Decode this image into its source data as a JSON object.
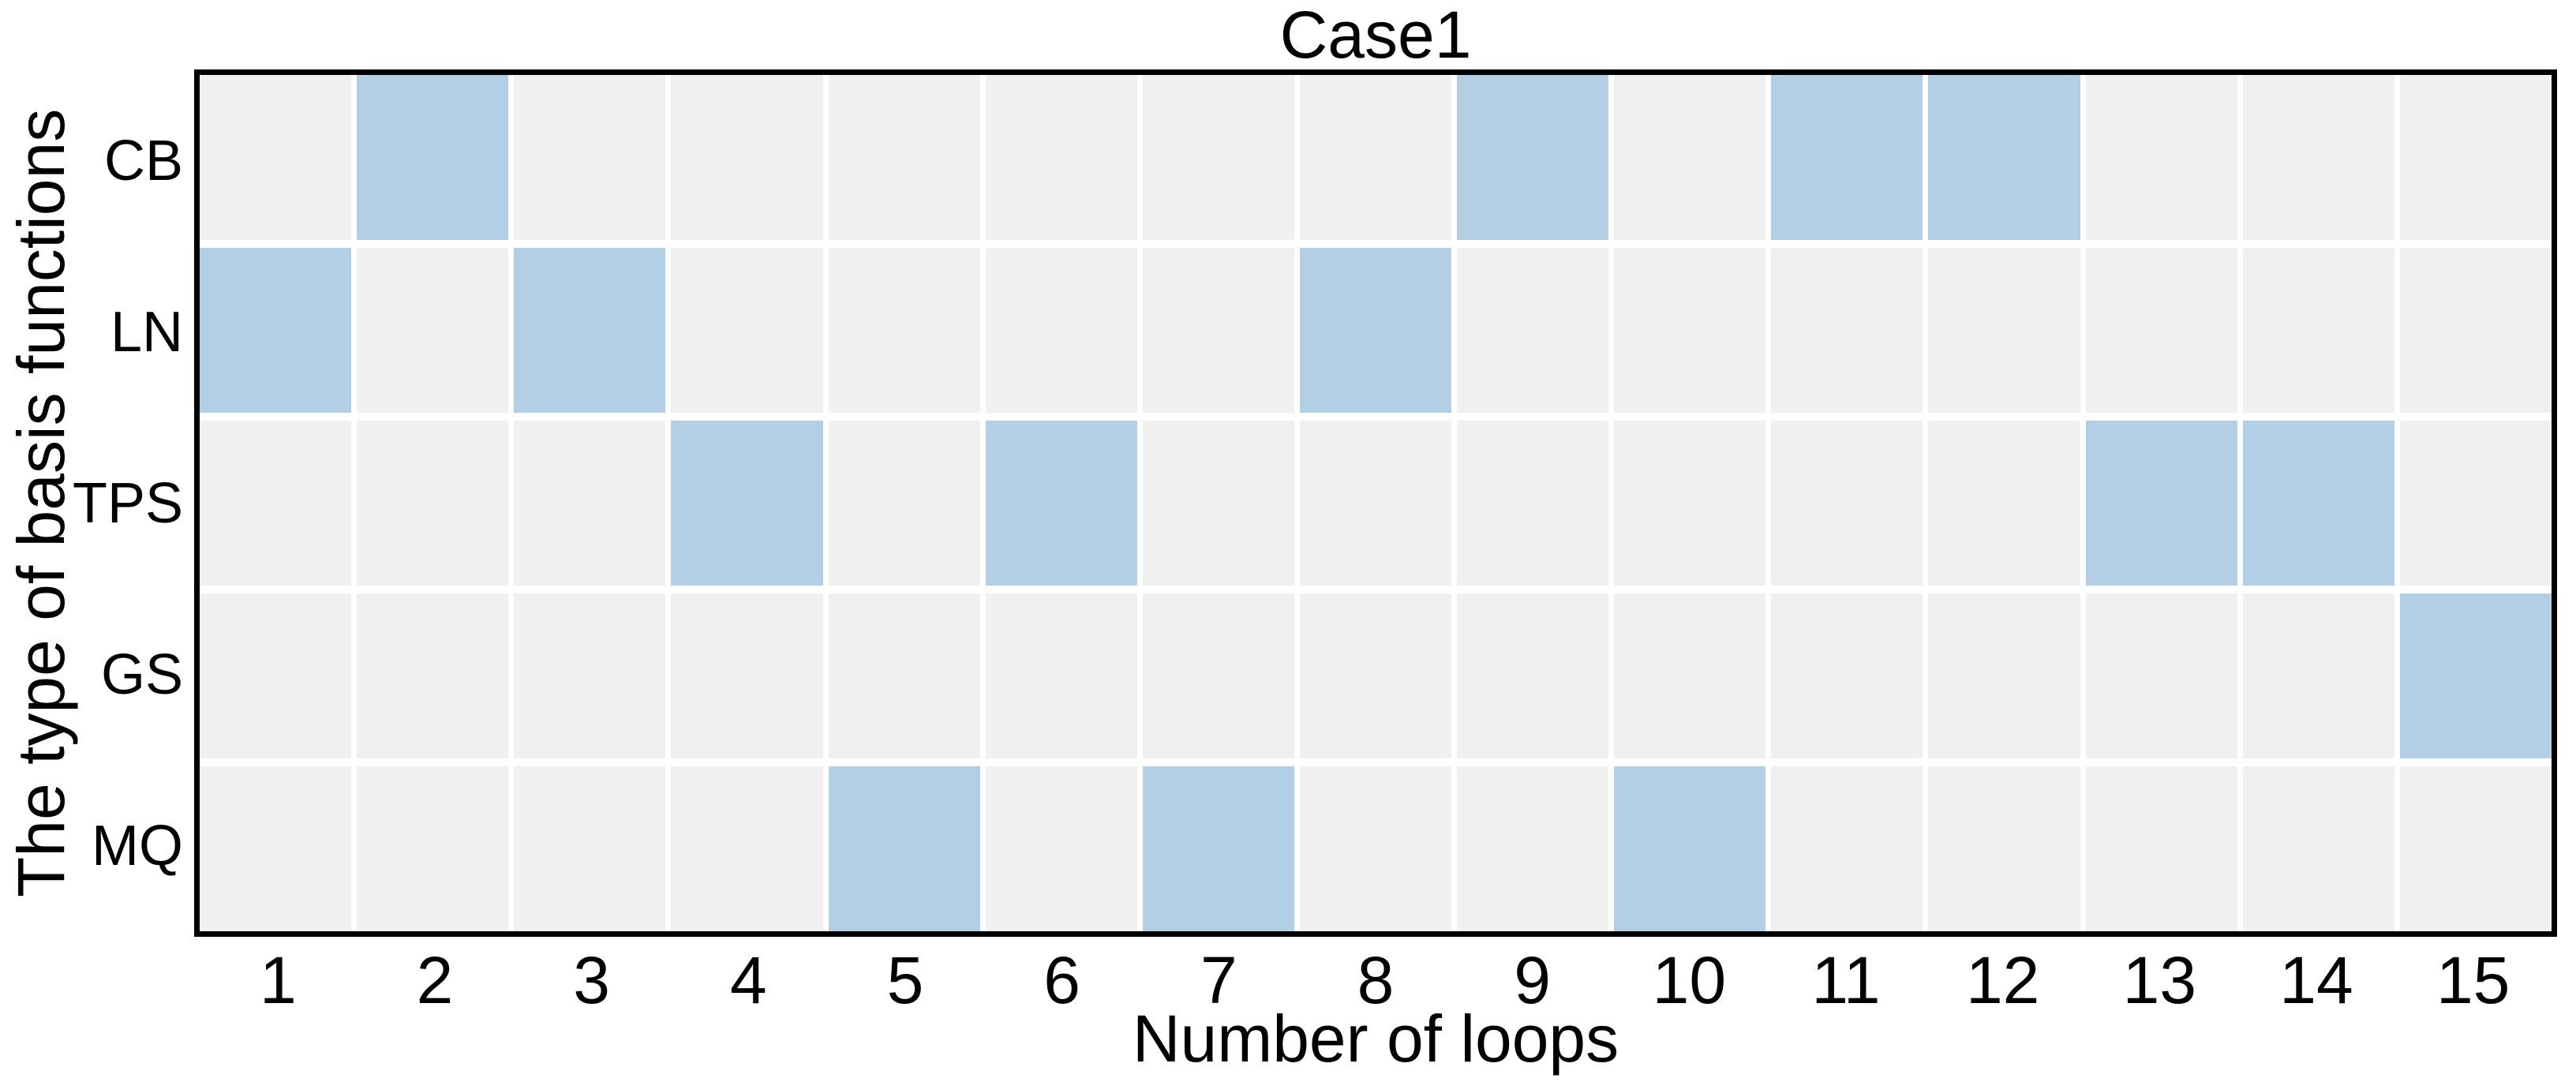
{
  "chart_data": {
    "type": "heatmap",
    "title": "Case1",
    "xlabel": "Number of loops",
    "ylabel": "The type of basis functions",
    "x_ticks": [
      "1",
      "2",
      "3",
      "4",
      "5",
      "6",
      "7",
      "8",
      "9",
      "10",
      "11",
      "12",
      "13",
      "14",
      "15"
    ],
    "y_ticks": [
      "CB",
      "LN",
      "TPS",
      "GS",
      "MQ"
    ],
    "x_range": [
      1,
      15
    ],
    "grid": true,
    "legend": null,
    "matrix": [
      [
        0,
        1,
        0,
        0,
        0,
        0,
        0,
        0,
        1,
        0,
        1,
        1,
        0,
        0,
        0
      ],
      [
        1,
        0,
        1,
        0,
        0,
        0,
        0,
        1,
        0,
        0,
        0,
        0,
        0,
        0,
        0
      ],
      [
        0,
        0,
        0,
        1,
        0,
        1,
        0,
        0,
        0,
        0,
        0,
        0,
        1,
        1,
        0
      ],
      [
        0,
        0,
        0,
        0,
        0,
        0,
        0,
        0,
        0,
        0,
        0,
        0,
        0,
        0,
        1
      ],
      [
        0,
        0,
        0,
        0,
        1,
        0,
        1,
        0,
        0,
        1,
        0,
        0,
        0,
        0,
        0
      ]
    ],
    "selected_loops_by_function": {
      "CB": [
        2,
        9,
        11,
        12
      ],
      "LN": [
        1,
        3,
        8
      ],
      "TPS": [
        4,
        6,
        13,
        14
      ],
      "GS": [
        15
      ],
      "MQ": [
        5,
        7,
        10
      ]
    },
    "colors": {
      "active_cell": "#b2cfe5",
      "inactive_cell": "#f0f0f0",
      "axis_border": "#000000",
      "grid_line": "#ffffff",
      "text": "#000000",
      "background": "#ffffff"
    }
  }
}
